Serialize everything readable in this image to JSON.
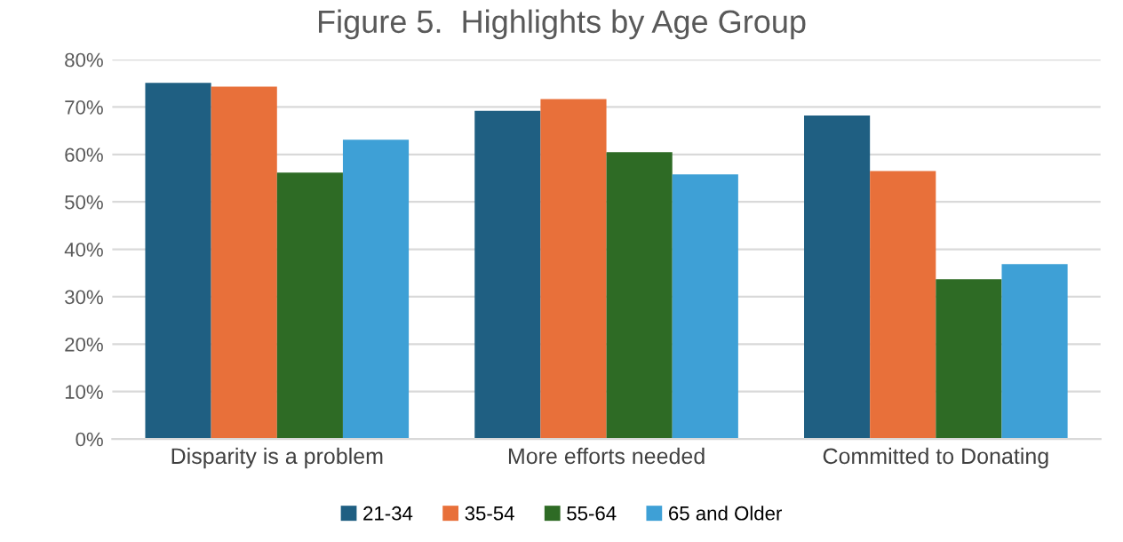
{
  "chart_data": {
    "type": "bar",
    "title": "Figure 5.  Highlights by Age Group",
    "categories": [
      "Disparity is a problem",
      "More efforts needed",
      "Committed to Donating"
    ],
    "series": [
      {
        "name": "21-34",
        "color": "#1f5f82",
        "values": [
          75.1,
          69.2,
          68.2
        ]
      },
      {
        "name": "35-54",
        "color": "#e8703a",
        "values": [
          74.3,
          71.7,
          56.5
        ]
      },
      {
        "name": "55-64",
        "color": "#2e6b25",
        "values": [
          56.2,
          60.5,
          33.7
        ]
      },
      {
        "name": "65 and Older",
        "color": "#3ea0d6",
        "values": [
          63.1,
          55.8,
          36.9
        ]
      }
    ],
    "ylim": [
      0,
      80
    ],
    "yticks": [
      {
        "value": 0,
        "label": "0%"
      },
      {
        "value": 10,
        "label": "10%"
      },
      {
        "value": 20,
        "label": "20%"
      },
      {
        "value": 30,
        "label": "30%"
      },
      {
        "value": 40,
        "label": "40%"
      },
      {
        "value": 50,
        "label": "50%"
      },
      {
        "value": 60,
        "label": "60%"
      },
      {
        "value": 70,
        "label": "70%"
      },
      {
        "value": 80,
        "label": "80%"
      }
    ],
    "grid": "y",
    "legend": "bottom"
  }
}
